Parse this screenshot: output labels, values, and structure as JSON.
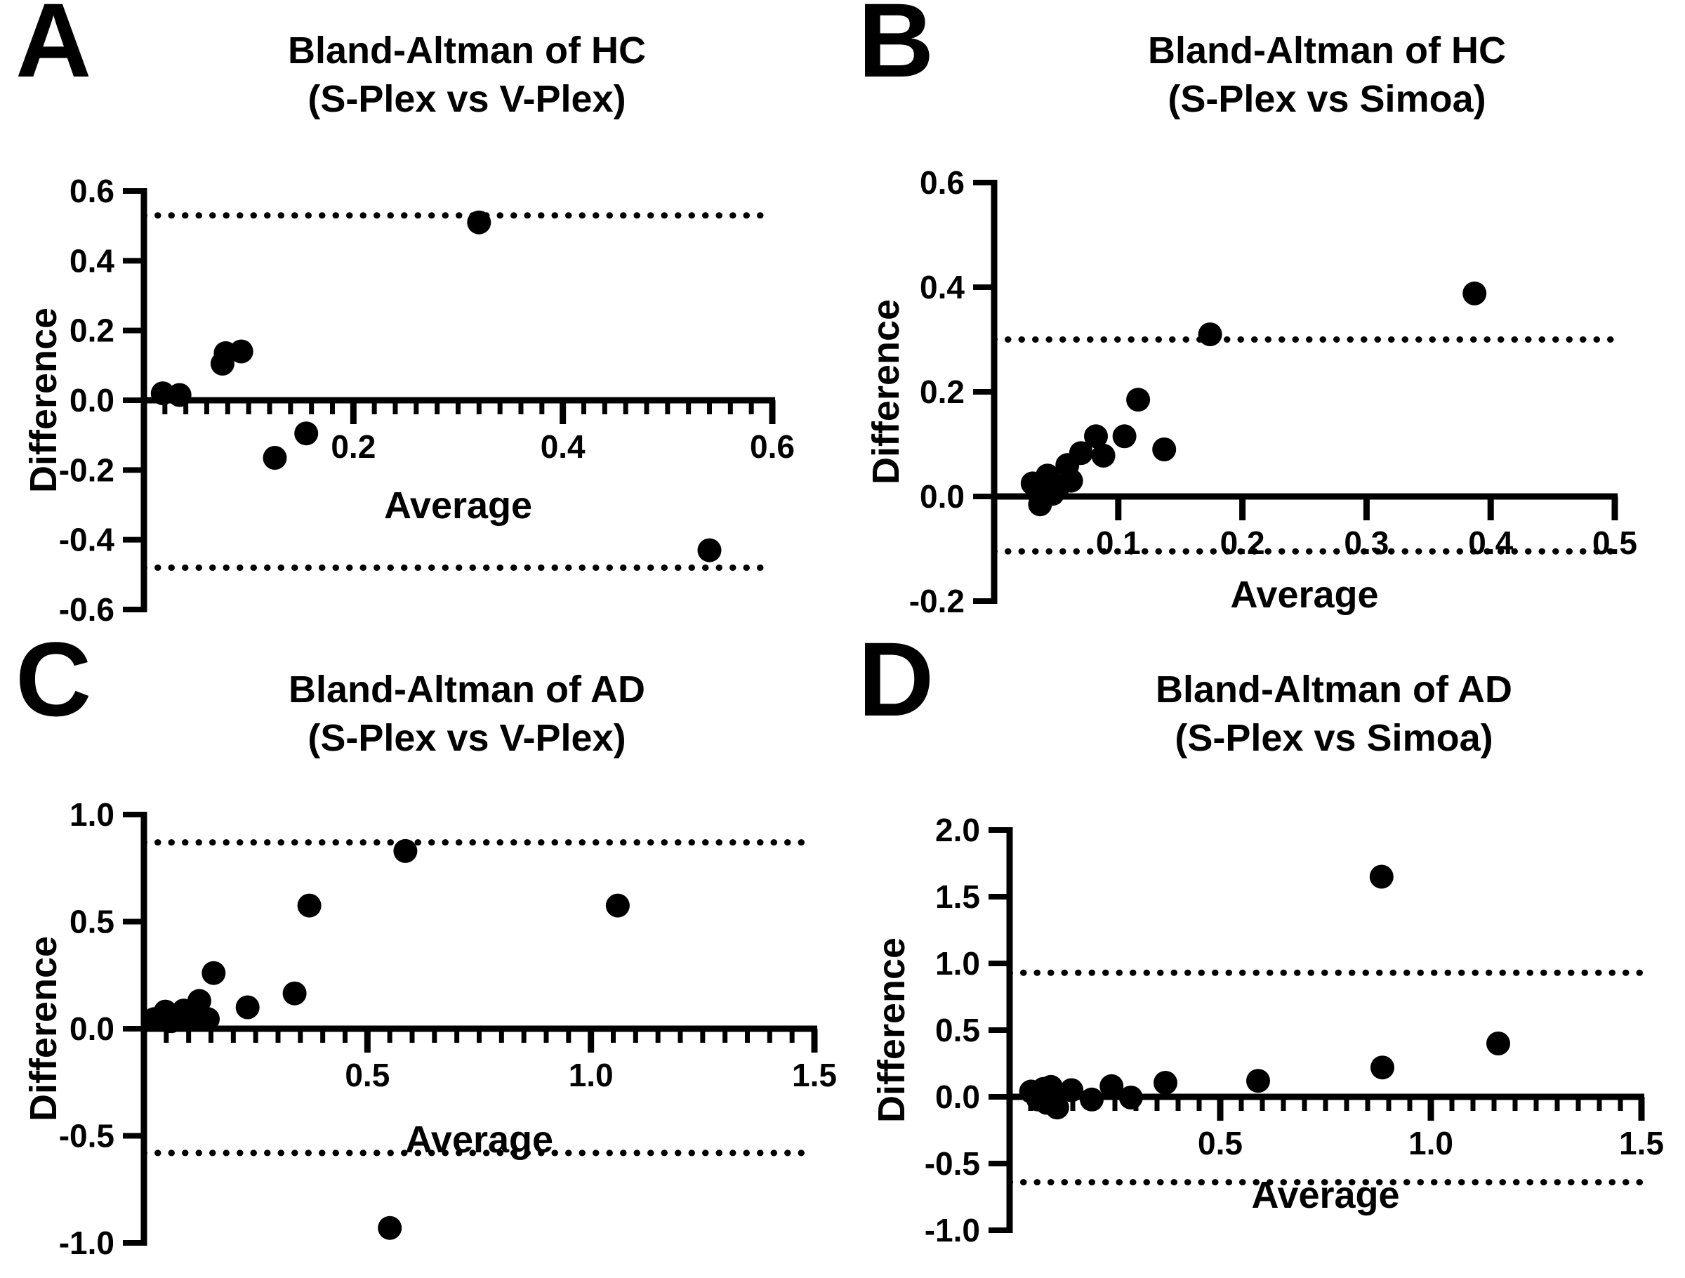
{
  "figure": {
    "background": "#ffffff",
    "marker_color": "#000000",
    "axis_color": "#000000"
  },
  "chart_data": [
    {
      "id": "panel-a",
      "letter": "A",
      "type": "scatter",
      "title_line1": "Bland-Altman of HC",
      "title_line2": "(S-Plex vs V-Plex)",
      "xlabel": "Average",
      "ylabel": "Difference",
      "xlim": [
        0,
        0.6
      ],
      "ylim": [
        -0.6,
        0.6
      ],
      "x_ticks": [
        {
          "v": 0.2,
          "label": "0.2"
        },
        {
          "v": 0.4,
          "label": "0.4"
        },
        {
          "v": 0.6,
          "label": "0.6"
        }
      ],
      "x_minor_step": 0.02,
      "y_ticks": [
        {
          "v": 0.6,
          "label": "0.6"
        },
        {
          "v": 0.4,
          "label": "0.4"
        },
        {
          "v": 0.2,
          "label": "0.2"
        },
        {
          "v": 0,
          "label": "0.0"
        },
        {
          "v": -0.2,
          "label": "-0.2"
        },
        {
          "v": -0.4,
          "label": "-0.4"
        },
        {
          "v": -0.6,
          "label": "-0.6"
        }
      ],
      "limit_lines": {
        "upper": 0.53,
        "lower": -0.48
      },
      "points": [
        [
          0.018,
          0.02
        ],
        [
          0.034,
          0.015
        ],
        [
          0.075,
          0.105
        ],
        [
          0.078,
          0.135
        ],
        [
          0.093,
          0.14
        ],
        [
          0.125,
          -0.165
        ],
        [
          0.155,
          -0.095
        ],
        [
          0.32,
          0.51
        ],
        [
          0.54,
          -0.43
        ]
      ]
    },
    {
      "id": "panel-b",
      "letter": "B",
      "type": "scatter",
      "title_line1": "Bland-Altman of HC",
      "title_line2": "(S-Plex vs Simoa)",
      "xlabel": "Average",
      "ylabel": "Difference",
      "xlim": [
        0,
        0.5
      ],
      "ylim": [
        -0.2,
        0.6
      ],
      "x_ticks": [
        {
          "v": 0.1,
          "label": "0.1"
        },
        {
          "v": 0.2,
          "label": "0.2"
        },
        {
          "v": 0.3,
          "label": "0.3"
        },
        {
          "v": 0.4,
          "label": "0.4"
        },
        {
          "v": 0.5,
          "label": "0.5"
        }
      ],
      "x_minor_step": null,
      "y_ticks": [
        {
          "v": 0.6,
          "label": "0.6"
        },
        {
          "v": 0.4,
          "label": "0.4"
        },
        {
          "v": 0.2,
          "label": "0.2"
        },
        {
          "v": 0,
          "label": "0.0"
        },
        {
          "v": -0.2,
          "label": "-0.2"
        }
      ],
      "limit_lines": {
        "upper": 0.3,
        "lower": -0.105
      },
      "points": [
        [
          0.031,
          0.025
        ],
        [
          0.035,
          0.01
        ],
        [
          0.037,
          -0.015
        ],
        [
          0.043,
          0.04
        ],
        [
          0.047,
          0.005
        ],
        [
          0.052,
          0.02
        ],
        [
          0.059,
          0.06
        ],
        [
          0.062,
          0.03
        ],
        [
          0.07,
          0.083
        ],
        [
          0.082,
          0.115
        ],
        [
          0.088,
          0.078
        ],
        [
          0.105,
          0.115
        ],
        [
          0.116,
          0.185
        ],
        [
          0.137,
          0.09
        ],
        [
          0.174,
          0.31
        ],
        [
          0.387,
          0.388
        ]
      ]
    },
    {
      "id": "panel-c",
      "letter": "C",
      "type": "scatter",
      "title_line1": "Bland-Altman of AD",
      "title_line2": "(S-Plex vs V-Plex)",
      "xlabel": "Average",
      "ylabel": "Difference",
      "xlim": [
        0,
        1.5
      ],
      "ylim": [
        -1.0,
        1.0
      ],
      "x_ticks": [
        {
          "v": 0.5,
          "label": "0.5"
        },
        {
          "v": 1.0,
          "label": "1.0"
        },
        {
          "v": 1.5,
          "label": "1.5"
        }
      ],
      "x_minor_step": 0.05,
      "y_ticks": [
        {
          "v": 1.0,
          "label": "1.0"
        },
        {
          "v": 0.5,
          "label": "0.5"
        },
        {
          "v": 0,
          "label": "0.0"
        },
        {
          "v": -0.5,
          "label": "-0.5"
        },
        {
          "v": -1.0,
          "label": "-1.0"
        }
      ],
      "limit_lines": {
        "upper": 0.87,
        "lower": -0.58
      },
      "points": [
        [
          0.023,
          0.045
        ],
        [
          0.048,
          0.08
        ],
        [
          0.061,
          0.035
        ],
        [
          0.089,
          0.085
        ],
        [
          0.101,
          0.055
        ],
        [
          0.124,
          0.13
        ],
        [
          0.133,
          0.05
        ],
        [
          0.143,
          0.045
        ],
        [
          0.156,
          0.26
        ],
        [
          0.232,
          0.1
        ],
        [
          0.337,
          0.165
        ],
        [
          0.37,
          0.575
        ],
        [
          0.585,
          0.83
        ],
        [
          1.06,
          0.575
        ],
        [
          0.55,
          -0.93
        ]
      ]
    },
    {
      "id": "panel-d",
      "letter": "D",
      "type": "scatter",
      "title_line1": "Bland-Altman of AD",
      "title_line2": "(S-Plex vs Simoa)",
      "xlabel": "Average",
      "ylabel": "Difference",
      "xlim": [
        0,
        1.5
      ],
      "ylim": [
        -1.0,
        2.0
      ],
      "x_ticks": [
        {
          "v": 0.5,
          "label": "0.5"
        },
        {
          "v": 1.0,
          "label": "1.0"
        },
        {
          "v": 1.5,
          "label": "1.5"
        }
      ],
      "x_minor_step": 0.05,
      "y_ticks": [
        {
          "v": 2.0,
          "label": "2.0"
        },
        {
          "v": 1.5,
          "label": "1.5"
        },
        {
          "v": 1.0,
          "label": "1.0"
        },
        {
          "v": 0.5,
          "label": "0.5"
        },
        {
          "v": 0,
          "label": "0.0"
        },
        {
          "v": -0.5,
          "label": "-0.5"
        },
        {
          "v": -1.0,
          "label": "-1.0"
        }
      ],
      "limit_lines": {
        "upper": 0.93,
        "lower": -0.64
      },
      "points": [
        [
          0.051,
          0.04
        ],
        [
          0.068,
          -0.02
        ],
        [
          0.081,
          0.06
        ],
        [
          0.088,
          -0.045
        ],
        [
          0.098,
          0.075
        ],
        [
          0.105,
          0.01
        ],
        [
          0.113,
          -0.08
        ],
        [
          0.147,
          0.05
        ],
        [
          0.195,
          -0.02
        ],
        [
          0.242,
          0.08
        ],
        [
          0.288,
          -0.005
        ],
        [
          0.37,
          0.105
        ],
        [
          0.59,
          0.12
        ],
        [
          0.883,
          1.65
        ],
        [
          0.885,
          0.22
        ],
        [
          1.16,
          0.4
        ]
      ]
    }
  ]
}
